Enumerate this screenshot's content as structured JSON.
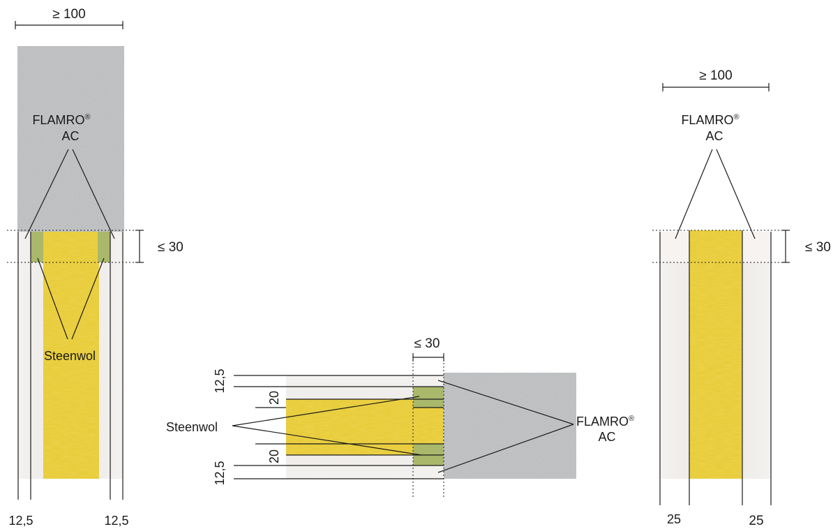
{
  "colors": {
    "concrete": "#b9bbbd",
    "mineral_wool": "#e8cc3a",
    "sealant": "#a9b86a",
    "board": "#f1eeec",
    "line": "#1a1a1a"
  },
  "left": {
    "width_dim": "≥ 100",
    "gap_dim": "≤ 30",
    "product_name": "FLAMRO",
    "product_reg": "®",
    "product_code": "AC",
    "wool_label": "Steenwol",
    "board_left": "12,5",
    "board_right": "12,5"
  },
  "middle": {
    "gap_dim": "≤ 30",
    "wool_label": "Steenwol",
    "product_name": "FLAMRO",
    "product_reg": "®",
    "product_code": "AC",
    "dims": [
      "12,5",
      "20",
      "20",
      "12,5"
    ]
  },
  "right": {
    "width_dim": "≥ 100",
    "gap_dim": "≤ 30",
    "product_name": "FLAMRO",
    "product_reg": "®",
    "product_code": "AC",
    "board_left": "25",
    "board_right": "25"
  }
}
